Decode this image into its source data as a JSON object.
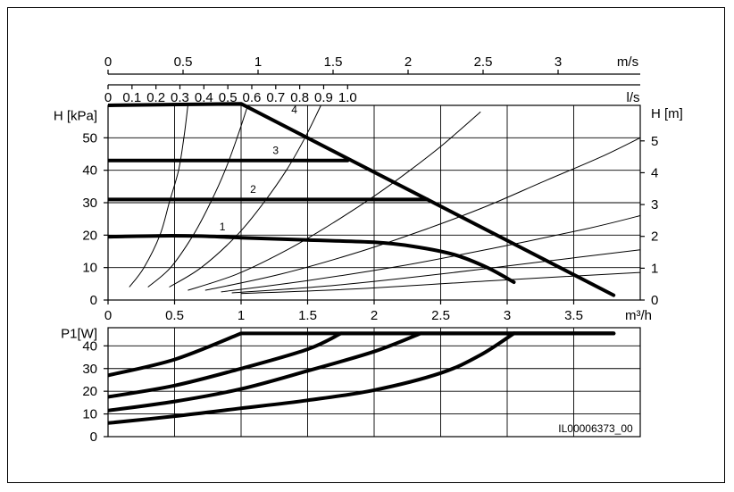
{
  "chart_data": [
    {
      "type": "line",
      "name": "head-chart",
      "title": "",
      "ylabel_left": "H [kPa]",
      "ylabel_right": "H [m]",
      "xlabel_bottom_unit": "m³/h",
      "xlim": [
        0,
        4
      ],
      "ylim_kpa": [
        0,
        60
      ],
      "x_ticks": [
        {
          "v": 0,
          "label": "0"
        },
        {
          "v": 0.5,
          "label": "0.5"
        },
        {
          "v": 1,
          "label": "1"
        },
        {
          "v": 1.5,
          "label": "1.5"
        },
        {
          "v": 2,
          "label": "2"
        },
        {
          "v": 2.5,
          "label": "2.5"
        },
        {
          "v": 3,
          "label": "3"
        },
        {
          "v": 3.5,
          "label": "3.5"
        }
      ],
      "top_axis_ls": {
        "unit": "l/s",
        "ticks": [
          {
            "v": 0,
            "label": "0"
          },
          {
            "v": 0.1,
            "label": "0.1"
          },
          {
            "v": 0.2,
            "label": "0.2"
          },
          {
            "v": 0.3,
            "label": "0.3"
          },
          {
            "v": 0.4,
            "label": "0.4"
          },
          {
            "v": 0.5,
            "label": "0.5"
          },
          {
            "v": 0.6,
            "label": "0.6"
          },
          {
            "v": 0.7,
            "label": "0.7"
          },
          {
            "v": 0.8,
            "label": "0.8"
          },
          {
            "v": 0.9,
            "label": "0.9"
          },
          {
            "v": 1.0,
            "label": "1.0"
          }
        ]
      },
      "top_axis_ms": {
        "unit": "m/s",
        "ticks": [
          {
            "v": 0,
            "label": "0"
          },
          {
            "v": 0.5,
            "label": "0.5"
          },
          {
            "v": 1,
            "label": "1"
          },
          {
            "v": 1.5,
            "label": "1.5"
          },
          {
            "v": 2,
            "label": "2"
          },
          {
            "v": 2.5,
            "label": "2.5"
          },
          {
            "v": 3,
            "label": "3"
          }
        ]
      },
      "y_ticks_kpa": [
        {
          "v": 0,
          "label": "0"
        },
        {
          "v": 10,
          "label": "10"
        },
        {
          "v": 20,
          "label": "20"
        },
        {
          "v": 30,
          "label": "30"
        },
        {
          "v": 40,
          "label": "40"
        },
        {
          "v": 50,
          "label": "50"
        }
      ],
      "y_ticks_m": [
        {
          "v": 0,
          "label": "0"
        },
        {
          "v": 1,
          "label": "1"
        },
        {
          "v": 2,
          "label": "2"
        },
        {
          "v": 3,
          "label": "3"
        },
        {
          "v": 4,
          "label": "4"
        },
        {
          "v": 5,
          "label": "5"
        }
      ],
      "series": [
        {
          "name": "1",
          "points": [
            [
              0,
              19.5
            ],
            [
              0.4,
              19.8
            ],
            [
              0.7,
              19.7
            ],
            [
              1.0,
              19.2
            ],
            [
              1.5,
              18.5
            ],
            [
              2.0,
              17.8
            ],
            [
              2.3,
              16.5
            ],
            [
              2.6,
              14.0
            ],
            [
              2.85,
              10.0
            ],
            [
              3.05,
              5.5
            ]
          ]
        },
        {
          "name": "2",
          "points": [
            [
              0,
              31
            ],
            [
              2.4,
              31
            ]
          ]
        },
        {
          "name": "3",
          "points": [
            [
              0,
              43
            ],
            [
              1.8,
              43
            ]
          ]
        },
        {
          "name": "4",
          "points": [
            [
              0,
              60
            ],
            [
              1.0,
              60.5
            ],
            [
              3.8,
              1.5
            ]
          ]
        }
      ],
      "series_labels": [
        {
          "text": "1",
          "x": 0.86,
          "y": 21.5
        },
        {
          "text": "2",
          "x": 1.09,
          "y": 33.0
        },
        {
          "text": "3",
          "x": 1.26,
          "y": 45.0
        },
        {
          "text": "4",
          "x": 1.4,
          "y": 57.5
        }
      ],
      "system_curves": [
        {
          "points": [
            [
              0.16,
              4
            ],
            [
              0.27,
              10
            ],
            [
              0.39,
              20
            ],
            [
              0.46,
              30
            ],
            [
              0.53,
              40
            ],
            [
              0.57,
              50
            ],
            [
              0.6,
              60
            ]
          ]
        },
        {
          "points": [
            [
              0.3,
              4
            ],
            [
              0.47,
              10
            ],
            [
              0.64,
              20
            ],
            [
              0.77,
              30
            ],
            [
              0.88,
              40
            ],
            [
              0.97,
              50
            ],
            [
              1.05,
              60
            ]
          ]
        },
        {
          "points": [
            [
              0.46,
              4
            ],
            [
              0.7,
              10
            ],
            [
              0.97,
              20
            ],
            [
              1.17,
              30
            ],
            [
              1.34,
              40
            ],
            [
              1.48,
              50
            ],
            [
              1.6,
              60
            ]
          ]
        },
        {
          "points": [
            [
              0.6,
              3
            ],
            [
              0.97,
              8
            ],
            [
              1.37,
              16
            ],
            [
              1.7,
              24
            ],
            [
              2.0,
              32
            ],
            [
              2.27,
              40
            ],
            [
              2.52,
              48
            ],
            [
              2.8,
              58
            ]
          ]
        },
        {
          "points": [
            [
              0.73,
              3
            ],
            [
              1.3,
              8
            ],
            [
              1.9,
              15
            ],
            [
              2.4,
              22
            ],
            [
              2.85,
              29
            ],
            [
              3.3,
              37
            ],
            [
              3.7,
              44
            ],
            [
              4.0,
              50
            ]
          ]
        },
        {
          "points": [
            [
              0.85,
              2.5
            ],
            [
              1.5,
              6
            ],
            [
              2.2,
              10.5
            ],
            [
              2.9,
              16
            ],
            [
              3.6,
              22
            ],
            [
              4.0,
              26
            ]
          ]
        },
        {
          "points": [
            [
              0.93,
              2.2
            ],
            [
              1.7,
              4.5
            ],
            [
              2.5,
              8
            ],
            [
              3.3,
              12
            ],
            [
              4.0,
              15.5
            ]
          ]
        },
        {
          "points": [
            [
              1.0,
              2.0
            ],
            [
              1.9,
              3.5
            ],
            [
              2.9,
              6
            ],
            [
              4.0,
              8.5
            ]
          ]
        }
      ]
    },
    {
      "type": "line",
      "name": "power-chart",
      "title": "",
      "ylabel": "P1[W]",
      "xlim": [
        0,
        4
      ],
      "ylim": [
        0,
        48
      ],
      "y_ticks": [
        {
          "v": 0,
          "label": "0"
        },
        {
          "v": 10,
          "label": "10"
        },
        {
          "v": 20,
          "label": "20"
        },
        {
          "v": 30,
          "label": "30"
        },
        {
          "v": 40,
          "label": "40"
        }
      ],
      "series": [
        {
          "name": "1",
          "points": [
            [
              0,
              6
            ],
            [
              0.5,
              9
            ],
            [
              1.0,
              12.5
            ],
            [
              1.5,
              16
            ],
            [
              2.0,
              20.5
            ],
            [
              2.5,
              28
            ],
            [
              2.8,
              36
            ],
            [
              3.05,
              45.5
            ],
            [
              3.8,
              45.5
            ]
          ]
        },
        {
          "name": "2",
          "points": [
            [
              0,
              11.5
            ],
            [
              0.5,
              15.5
            ],
            [
              1.0,
              21
            ],
            [
              1.5,
              29
            ],
            [
              2.0,
              37.5
            ],
            [
              2.35,
              45.5
            ],
            [
              3.8,
              45.5
            ]
          ]
        },
        {
          "name": "3",
          "points": [
            [
              0,
              17.5
            ],
            [
              0.5,
              22.5
            ],
            [
              1.0,
              30
            ],
            [
              1.5,
              38.5
            ],
            [
              1.75,
              45.5
            ],
            [
              3.8,
              45.5
            ]
          ]
        },
        {
          "name": "4",
          "points": [
            [
              0,
              27
            ],
            [
              0.5,
              34
            ],
            [
              1.0,
              45.5
            ],
            [
              3.8,
              45.5
            ]
          ]
        }
      ]
    }
  ],
  "figure_id": "IL00006373_00"
}
